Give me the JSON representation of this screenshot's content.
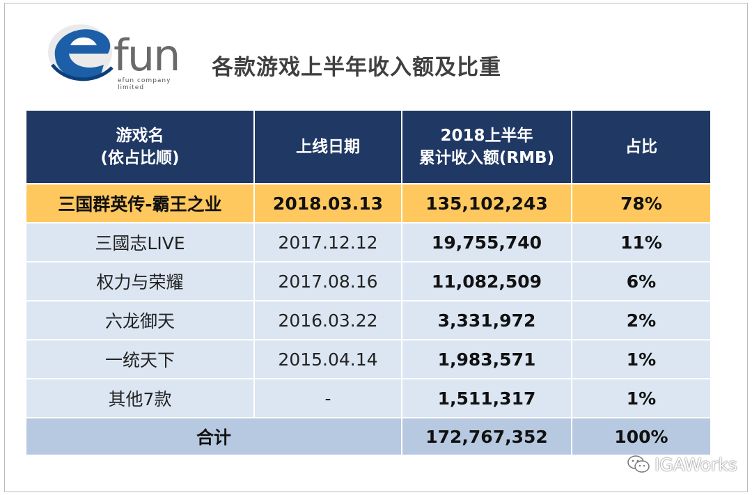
{
  "logo": {
    "text": "efun",
    "e": "e",
    "rest": "fun",
    "subtitle": "efun company limited",
    "colors": {
      "blue": "#1c5fa8",
      "dark": "#0d3f7a",
      "grey": "#6a6a6a"
    }
  },
  "title": "各款游戏上半年收入额及比重",
  "table": {
    "headers": [
      [
        "游戏名",
        "(依占比顺)"
      ],
      [
        "上线日期"
      ],
      [
        "2018上半年",
        "累计收入额(RMB)"
      ],
      [
        "占比"
      ]
    ],
    "highlight_row": {
      "name": "三国群英传-霸王之业",
      "date": "2018.03.13",
      "revenue": "135,102,243",
      "share": "78%"
    },
    "rows": [
      {
        "name": "三國志LIVE",
        "date": "2017.12.12",
        "revenue": "19,755,740",
        "share": "11%"
      },
      {
        "name": "权力与荣耀",
        "date": "2017.08.16",
        "revenue": "11,082,509",
        "share": "6%"
      },
      {
        "name": "六龙御天",
        "date": "2016.03.22",
        "revenue": "3,331,972",
        "share": "2%"
      },
      {
        "name": "一统天下",
        "date": "2015.04.14",
        "revenue": "1,983,571",
        "share": "1%"
      },
      {
        "name": "其他7款",
        "date": "-",
        "revenue": "1,511,317",
        "share": "1%"
      }
    ],
    "total": {
      "label": "合计",
      "revenue": "172,767,352",
      "share": "100%"
    }
  },
  "watermark": {
    "icon": "wechat-icon",
    "text": "IGAWorks"
  },
  "colors": {
    "header": "#203864",
    "highlight": "#ffc85e",
    "row": "#dce6f2",
    "total": "#b7c9e0"
  }
}
